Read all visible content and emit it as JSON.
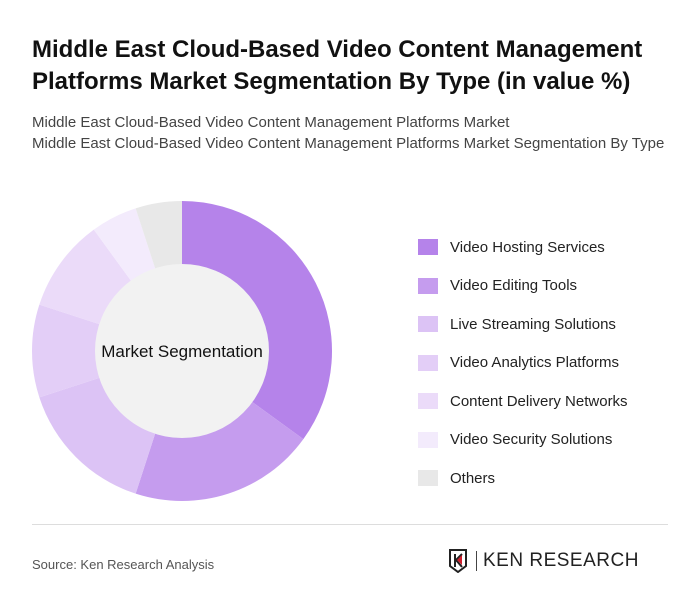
{
  "title": "Middle East Cloud-Based Video Content Management Platforms Market Segmentation By Type (in value %)",
  "subtitle1": "Middle East Cloud-Based Video Content Management Platforms Market",
  "subtitle2": "Middle East Cloud-Based Video Content Management Platforms Market Segmentation By Type",
  "source": "Source: Ken Research Analysis",
  "logo": {
    "text": "KEN RESEARCH",
    "accent": "#d0202e"
  },
  "chart_data": {
    "type": "pie",
    "donut": true,
    "center_label": "Market Segmentation",
    "legend_position": "right",
    "categories": [
      "Video Hosting Services",
      "Video Editing Tools",
      "Live Streaming Solutions",
      "Video Analytics Platforms",
      "Content Delivery Networks",
      "Video Security Solutions",
      "Others"
    ],
    "values": [
      35,
      20,
      15,
      10,
      10,
      5,
      5
    ],
    "colors": [
      "#b583ea",
      "#c59cee",
      "#dcc3f5",
      "#e3cef7",
      "#ebdbf9",
      "#f3ebfc",
      "#e8e8e8"
    ]
  }
}
